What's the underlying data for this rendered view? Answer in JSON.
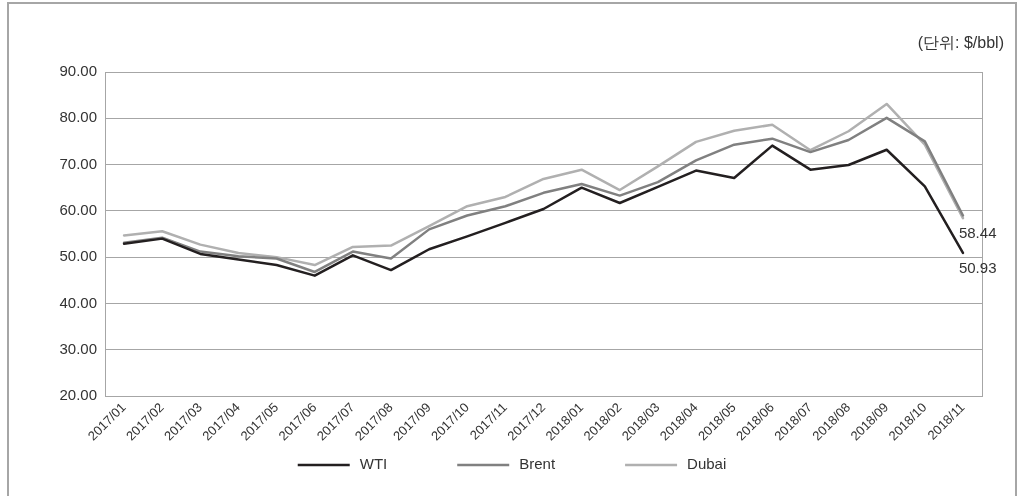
{
  "chart_data": {
    "type": "line",
    "annotations": [
      "(단위: $/bbl)"
    ],
    "categories": [
      "2017/01",
      "2017/02",
      "2017/03",
      "2017/04",
      "2017/05",
      "2017/06",
      "2017/07",
      "2017/08",
      "2017/09",
      "2017/10",
      "2017/11",
      "2017/12",
      "2018/01",
      "2018/02",
      "2018/03",
      "2018/04",
      "2018/05",
      "2018/06",
      "2018/07",
      "2018/08",
      "2018/09",
      "2018/10",
      "2018/11"
    ],
    "series": [
      {
        "name": "WTI",
        "color": "#231f20",
        "values": [
          52.9,
          54.0,
          50.7,
          49.5,
          48.3,
          46.0,
          50.4,
          47.2,
          51.7,
          54.5,
          57.4,
          60.4,
          65.0,
          61.7,
          65.2,
          68.7,
          67.1,
          74.1,
          68.9,
          69.9,
          73.2,
          65.3,
          50.93
        ],
        "value_labels": [
          null,
          null,
          null,
          null,
          null,
          null,
          null,
          null,
          null,
          null,
          null,
          null,
          null,
          null,
          null,
          null,
          null,
          null,
          null,
          null,
          null,
          null,
          "50.93"
        ]
      },
      {
        "name": "Brent",
        "color": "#808080",
        "values": [
          53.1,
          54.2,
          51.2,
          50.2,
          49.7,
          46.8,
          51.2,
          49.7,
          56.0,
          59.0,
          61.0,
          63.9,
          65.8,
          63.3,
          66.2,
          70.9,
          74.3,
          75.6,
          72.7,
          75.3,
          80.1,
          75.0,
          59.0
        ]
      },
      {
        "name": "Dubai",
        "color": "#b0b0b0",
        "values": [
          54.7,
          55.6,
          52.7,
          50.9,
          50.0,
          48.3,
          52.2,
          52.5,
          56.7,
          61.0,
          63.0,
          66.9,
          68.9,
          64.5,
          69.6,
          74.9,
          77.3,
          78.6,
          73.1,
          77.2,
          83.1,
          74.3,
          58.44
        ],
        "value_labels": [
          null,
          null,
          null,
          null,
          null,
          null,
          null,
          null,
          null,
          null,
          null,
          null,
          null,
          null,
          null,
          null,
          null,
          null,
          null,
          null,
          null,
          null,
          "58.44"
        ]
      }
    ],
    "ylim": [
      20,
      90
    ],
    "yticks": [
      {
        "value": 20,
        "label": "20.00"
      },
      {
        "value": 30,
        "label": "30.00"
      },
      {
        "value": 40,
        "label": "40.00"
      },
      {
        "value": 50,
        "label": "50.00"
      },
      {
        "value": 60,
        "label": "60.00"
      },
      {
        "value": 70,
        "label": "70.00"
      },
      {
        "value": 80,
        "label": "80.00"
      },
      {
        "value": 90,
        "label": "90.00"
      }
    ],
    "grid": "y",
    "legend": "bottom",
    "marker": "none"
  }
}
